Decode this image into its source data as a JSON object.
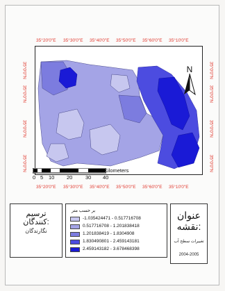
{
  "map": {
    "coords_top": [
      "35°20'0\"E",
      "35°30'0\"E",
      "35°40'0\"E",
      "35°50'0\"E",
      "35°60'0\"E",
      "35°10'0\"E"
    ],
    "coords_bottom": [
      "35°20'0\"E",
      "35°30'0\"E",
      "35°40'0\"E",
      "35°50'0\"E",
      "35°60'0\"E",
      "35°10'0\"E"
    ],
    "coords_side": [
      "35°0'0\"N",
      "35°0'0\"N",
      "35°0'0\"N",
      "35°0'0\"N"
    ],
    "north_label": "N",
    "scale": {
      "ticks": [
        "0",
        "5",
        "10",
        "20",
        "30",
        "40"
      ],
      "unit": "Kilometers"
    },
    "colors": {
      "class1": "#c7c7ef",
      "class2": "#a4a4e6",
      "class3": "#7c7cdf",
      "class4": "#4c4ce0",
      "class5": "#1a1ad6",
      "coords": "#e0392f"
    }
  },
  "designer": {
    "title_line1": "ترسیم",
    "title_line2": "کنندگان:",
    "name": "نگارندگان"
  },
  "legend": {
    "title": "بر حسب متر",
    "items": [
      {
        "label": "-1.035424471 - 0.517716708",
        "color": "#c7c7ef"
      },
      {
        "label": "0.517716708 - 1.201838418",
        "color": "#a4a4e6"
      },
      {
        "label": "1.201838419 - 1.8304908",
        "color": "#7c7cdf"
      },
      {
        "label": "1.830490801 - 2.459143181",
        "color": "#4c4ce0"
      },
      {
        "label": "2.459143182 - 3.678468398",
        "color": "#1a1ad6"
      }
    ]
  },
  "title_box": {
    "line1": "عنوان",
    "line2": "نقشه:",
    "subtitle": "تغییرات سطح آب",
    "years": "2004-2005"
  }
}
